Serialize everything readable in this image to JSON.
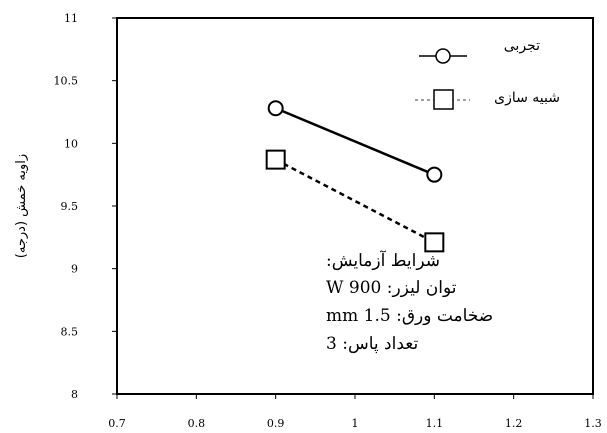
{
  "chart_data": {
    "type": "line",
    "title": "",
    "xlabel": "",
    "ylabel": "زاویه خمش (درجه)",
    "xlim": [
      0.7,
      1.3
    ],
    "ylim": [
      8,
      11
    ],
    "xticks": [
      "0.7",
      "0.9",
      "0.8",
      "1",
      "1.1",
      "1.2",
      "1.3"
    ],
    "xtick_values": [
      0.7,
      0.9,
      0.8,
      1,
      1.1,
      1.2,
      1.3
    ],
    "yticks": [
      "8",
      "8.5",
      "9",
      "9.5",
      "10",
      "10.5",
      "11"
    ],
    "ytick_values": [
      8,
      8.5,
      9,
      9.5,
      10,
      10.5,
      11
    ],
    "grid": false,
    "legend_position": "top-right",
    "series": [
      {
        "name": "تجربی",
        "marker": "circle",
        "line": "solid",
        "color": "#000000",
        "x": [
          0.9,
          1.1
        ],
        "y": [
          10.28,
          9.75
        ]
      },
      {
        "name": "شبیه سازی",
        "marker": "square",
        "line": "dashed",
        "color": "#000000",
        "x": [
          0.9,
          1.1
        ],
        "y": [
          9.87,
          9.21
        ]
      }
    ],
    "annotations": [
      "شرایط آزمایش:",
      "توان لیزر: 900 W",
      "ضخامت ورق: 1.5 mm",
      "تعداد پاس: 3"
    ]
  }
}
